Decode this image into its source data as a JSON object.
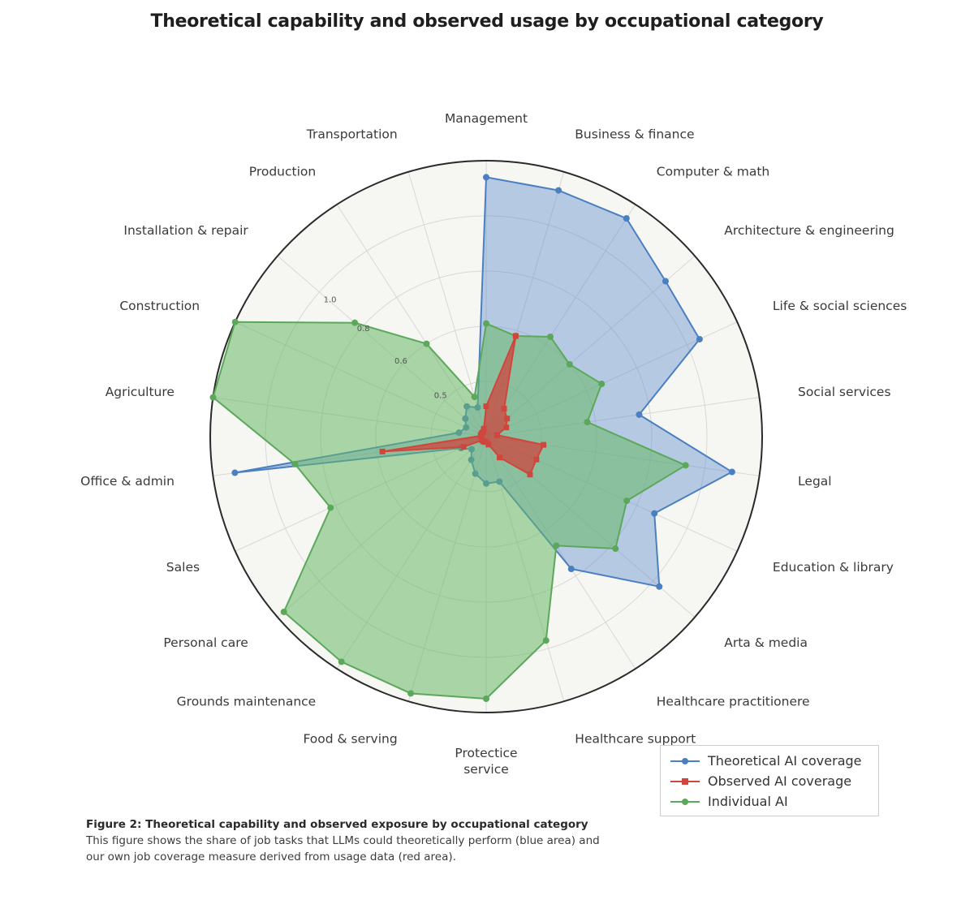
{
  "chart_data": {
    "type": "radar",
    "title": "Theoretical capability and observed usage by occupational category",
    "categories": [
      "Management",
      "Business & finance",
      "Computer & math",
      "Architecture & engineering",
      "Life & social sciences",
      "Social services",
      "Legal",
      "Education & library",
      "Arta & media",
      "Healthcare practitionere",
      "Healthcare support",
      "Protectice service",
      "Food & serving",
      "Grounds maintenance",
      "Personal care",
      "Sales",
      "Office & admin",
      "Agriculture",
      "Construction",
      "Installation & repair",
      "Production",
      "Transportation"
    ],
    "radial_ticks": [
      "0.5",
      "0.6",
      "0.8",
      "1.0"
    ],
    "rlim": [
      0,
      1
    ],
    "grid": true,
    "legend_position": "bottom-right",
    "series": [
      {
        "name": "Theoretical AI coverage",
        "color": "#4a7fc1",
        "fill": "rgba(92,138,204,0.42)",
        "marker": "circle",
        "values": [
          0.94,
          0.93,
          0.94,
          0.86,
          0.85,
          0.56,
          0.9,
          0.67,
          0.83,
          0.57,
          0.17,
          0.17,
          0.14,
          0.1,
          0.07,
          0.1,
          0.92,
          0.1,
          0.08,
          0.1,
          0.13,
          0.11
        ]
      },
      {
        "name": "Observed AI coverage",
        "color": "#d0463d",
        "fill": "rgba(206,64,58,0.72)",
        "marker": "square",
        "values": [
          0.11,
          0.38,
          0.12,
          0.1,
          0.08,
          0.04,
          0.21,
          0.2,
          0.21,
          0.09,
          0.03,
          0.02,
          0.02,
          0.02,
          0.02,
          0.09,
          0.38,
          0.02,
          0.02,
          0.02,
          0.02,
          0.03
        ]
      },
      {
        "name": "Individual AI",
        "color": "#5ba85b",
        "fill": "rgba(104,184,104,0.55)",
        "marker": "circle",
        "values": [
          0.41,
          0.38,
          0.43,
          0.4,
          0.46,
          0.37,
          0.73,
          0.56,
          0.62,
          0.47,
          0.77,
          0.95,
          0.97,
          0.97,
          0.97,
          0.62,
          0.7,
          1.0,
          1.0,
          0.63,
          0.4,
          0.15
        ]
      }
    ]
  },
  "legend": {
    "items": [
      "Theoretical AI coverage",
      "Observed AI coverage",
      "Individual AI"
    ]
  },
  "caption": {
    "title": "Figure 2: Theoretical capability and observed exposure by occupational category",
    "body": "This figure shows the share of job tasks that LLMs could theoretically perform (blue area) and our own job coverage measure derived from usage data (red area)."
  }
}
